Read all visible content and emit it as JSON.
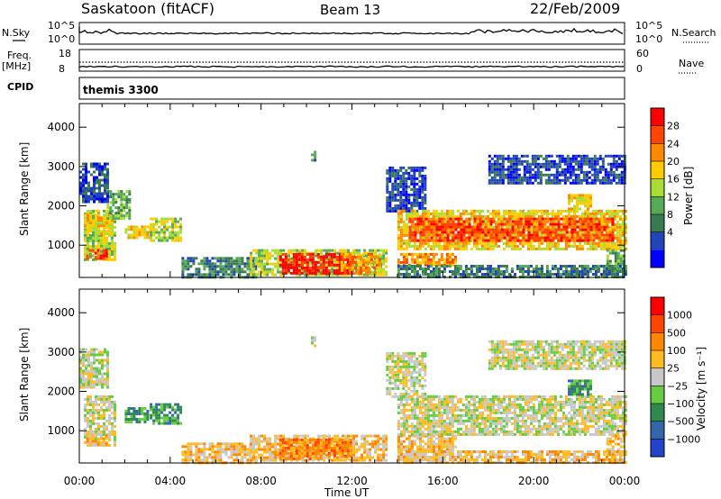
{
  "header": {
    "station": "Saskatoon (fitACF)",
    "beam": "Beam 13",
    "date": "22/Feb/2009"
  },
  "top_panels": {
    "nsky_label": "N.Sky",
    "nsearch_label": "N.Search",
    "nsky_ticks": [
      "10^5",
      "10^0"
    ],
    "nsearch_ticks": [
      "10^5",
      "10^0"
    ],
    "freq_label": "Freq.",
    "freq_unit": "[MHz]",
    "freq_ticks": [
      "18",
      "8"
    ],
    "nave_label": "Nave",
    "nave_ticks": [
      "60",
      "0"
    ],
    "cpid_label": "CPID",
    "cpid_value": "themis 3300"
  },
  "chart_data": [
    {
      "type": "heatmap",
      "name": "power",
      "ylabel": "Slant Range [km]",
      "xlabel": "Time UT",
      "ylim": [
        180,
        4600
      ],
      "xlim": [
        0,
        24
      ],
      "yticks": [
        1000,
        2000,
        3000,
        4000
      ],
      "colorbar_label": "Power [dB]",
      "colorbar_ticks": [
        "28",
        "24",
        "20",
        "16",
        "12",
        "8",
        "4"
      ],
      "colors": [
        "#0000ff",
        "#2244bb",
        "#3a7a4f",
        "#55aa55",
        "#aadd33",
        "#ffcc00",
        "#ff8800",
        "#ff4400",
        "#ff0000"
      ],
      "regions": [
        {
          "t0": 0.2,
          "t1": 1.6,
          "r0": 600,
          "r1": 1900,
          "level": 4
        },
        {
          "t0": 0.3,
          "t1": 1.2,
          "r0": 650,
          "r1": 900,
          "level": 7
        },
        {
          "t0": 0.2,
          "t1": 1.5,
          "r0": 1300,
          "r1": 1800,
          "level": 5
        },
        {
          "t0": 1.2,
          "t1": 2.2,
          "r0": 1700,
          "r1": 2400,
          "level": 3
        },
        {
          "t0": 0.0,
          "t1": 1.3,
          "r0": 2100,
          "r1": 3100,
          "level": 1
        },
        {
          "t0": 2.0,
          "t1": 3.1,
          "r0": 1200,
          "r1": 1500,
          "level": 5
        },
        {
          "t0": 3.1,
          "t1": 4.5,
          "r0": 1100,
          "r1": 1700,
          "level": 4
        },
        {
          "t0": 4.5,
          "t1": 7.8,
          "r0": 200,
          "r1": 700,
          "level": 2
        },
        {
          "t0": 7.5,
          "t1": 13.5,
          "r0": 250,
          "r1": 900,
          "level": 4
        },
        {
          "t0": 8.8,
          "t1": 11.9,
          "r0": 300,
          "r1": 800,
          "level": 8
        },
        {
          "t0": 11.5,
          "t1": 13.2,
          "r0": 300,
          "r1": 800,
          "level": 6
        },
        {
          "t0": 10.2,
          "t1": 10.4,
          "r0": 3150,
          "r1": 3400,
          "level": 2
        },
        {
          "t0": 13.5,
          "t1": 15.2,
          "r0": 1900,
          "r1": 3000,
          "level": 1
        },
        {
          "t0": 14.0,
          "t1": 16.5,
          "r0": 500,
          "r1": 800,
          "level": 6
        },
        {
          "t0": 14.0,
          "t1": 24.0,
          "r0": 900,
          "r1": 1900,
          "level": 5
        },
        {
          "t0": 14.5,
          "t1": 23.5,
          "r0": 1100,
          "r1": 1700,
          "level": 7
        },
        {
          "t0": 18.0,
          "t1": 24.0,
          "r0": 2600,
          "r1": 3300,
          "level": 1
        },
        {
          "t0": 21.5,
          "t1": 22.5,
          "r0": 1900,
          "r1": 2300,
          "level": 5
        },
        {
          "t0": 23.2,
          "t1": 24.0,
          "r0": 400,
          "r1": 900,
          "level": 3
        },
        {
          "t0": 14.0,
          "t1": 24.0,
          "r0": 200,
          "r1": 500,
          "level": 2
        }
      ]
    },
    {
      "type": "heatmap",
      "name": "velocity",
      "ylabel": "Slant Range [km]",
      "xlabel": "Time UT",
      "ylim": [
        180,
        4600
      ],
      "xlim": [
        0,
        24
      ],
      "yticks": [
        1000,
        2000,
        3000,
        4000
      ],
      "xticks": [
        "00:00",
        "04:00",
        "08:00",
        "12:00",
        "16:00",
        "20:00",
        "00:00"
      ],
      "colorbar_label": "Velocity [m s⁻¹]",
      "colorbar_ticks": [
        "1000",
        "500",
        "100",
        "25",
        "−25",
        "−100",
        "−500",
        "−1000"
      ],
      "colors": [
        "#2244cc",
        "#3366aa",
        "#2f8a4f",
        "#66cc44",
        "#c8c8c8",
        "#ffbb22",
        "#ff8800",
        "#ff4400",
        "#ff0000"
      ],
      "regions": [
        {
          "t0": 0.2,
          "t1": 1.6,
          "r0": 600,
          "r1": 1900,
          "level": 4
        },
        {
          "t0": 0.3,
          "t1": 1.2,
          "r0": 650,
          "r1": 900,
          "level": 5
        },
        {
          "t0": 2.0,
          "t1": 3.0,
          "r0": 1200,
          "r1": 1600,
          "level": 2
        },
        {
          "t0": 3.1,
          "t1": 4.5,
          "r0": 1200,
          "r1": 1700,
          "level": 2
        },
        {
          "t0": 0.0,
          "t1": 1.3,
          "r0": 2100,
          "r1": 3100,
          "level": 4
        },
        {
          "t0": 4.5,
          "t1": 7.8,
          "r0": 200,
          "r1": 700,
          "level": 5
        },
        {
          "t0": 7.5,
          "t1": 13.5,
          "r0": 250,
          "r1": 900,
          "level": 5
        },
        {
          "t0": 8.8,
          "t1": 11.9,
          "r0": 300,
          "r1": 800,
          "level": 6
        },
        {
          "t0": 10.2,
          "t1": 10.4,
          "r0": 3150,
          "r1": 3400,
          "level": 4
        },
        {
          "t0": 13.5,
          "t1": 15.2,
          "r0": 1900,
          "r1": 3000,
          "level": 4
        },
        {
          "t0": 14.0,
          "t1": 16.5,
          "r0": 500,
          "r1": 900,
          "level": 5
        },
        {
          "t0": 14.0,
          "t1": 24.0,
          "r0": 900,
          "r1": 1900,
          "level": 4
        },
        {
          "t0": 18.0,
          "t1": 24.0,
          "r0": 2600,
          "r1": 3300,
          "level": 4
        },
        {
          "t0": 21.5,
          "t1": 22.5,
          "r0": 1900,
          "r1": 2300,
          "level": 2
        },
        {
          "t0": 23.2,
          "t1": 24.0,
          "r0": 400,
          "r1": 900,
          "level": 5
        },
        {
          "t0": 14.0,
          "t1": 24.0,
          "r0": 200,
          "r1": 500,
          "level": 5
        }
      ]
    }
  ]
}
